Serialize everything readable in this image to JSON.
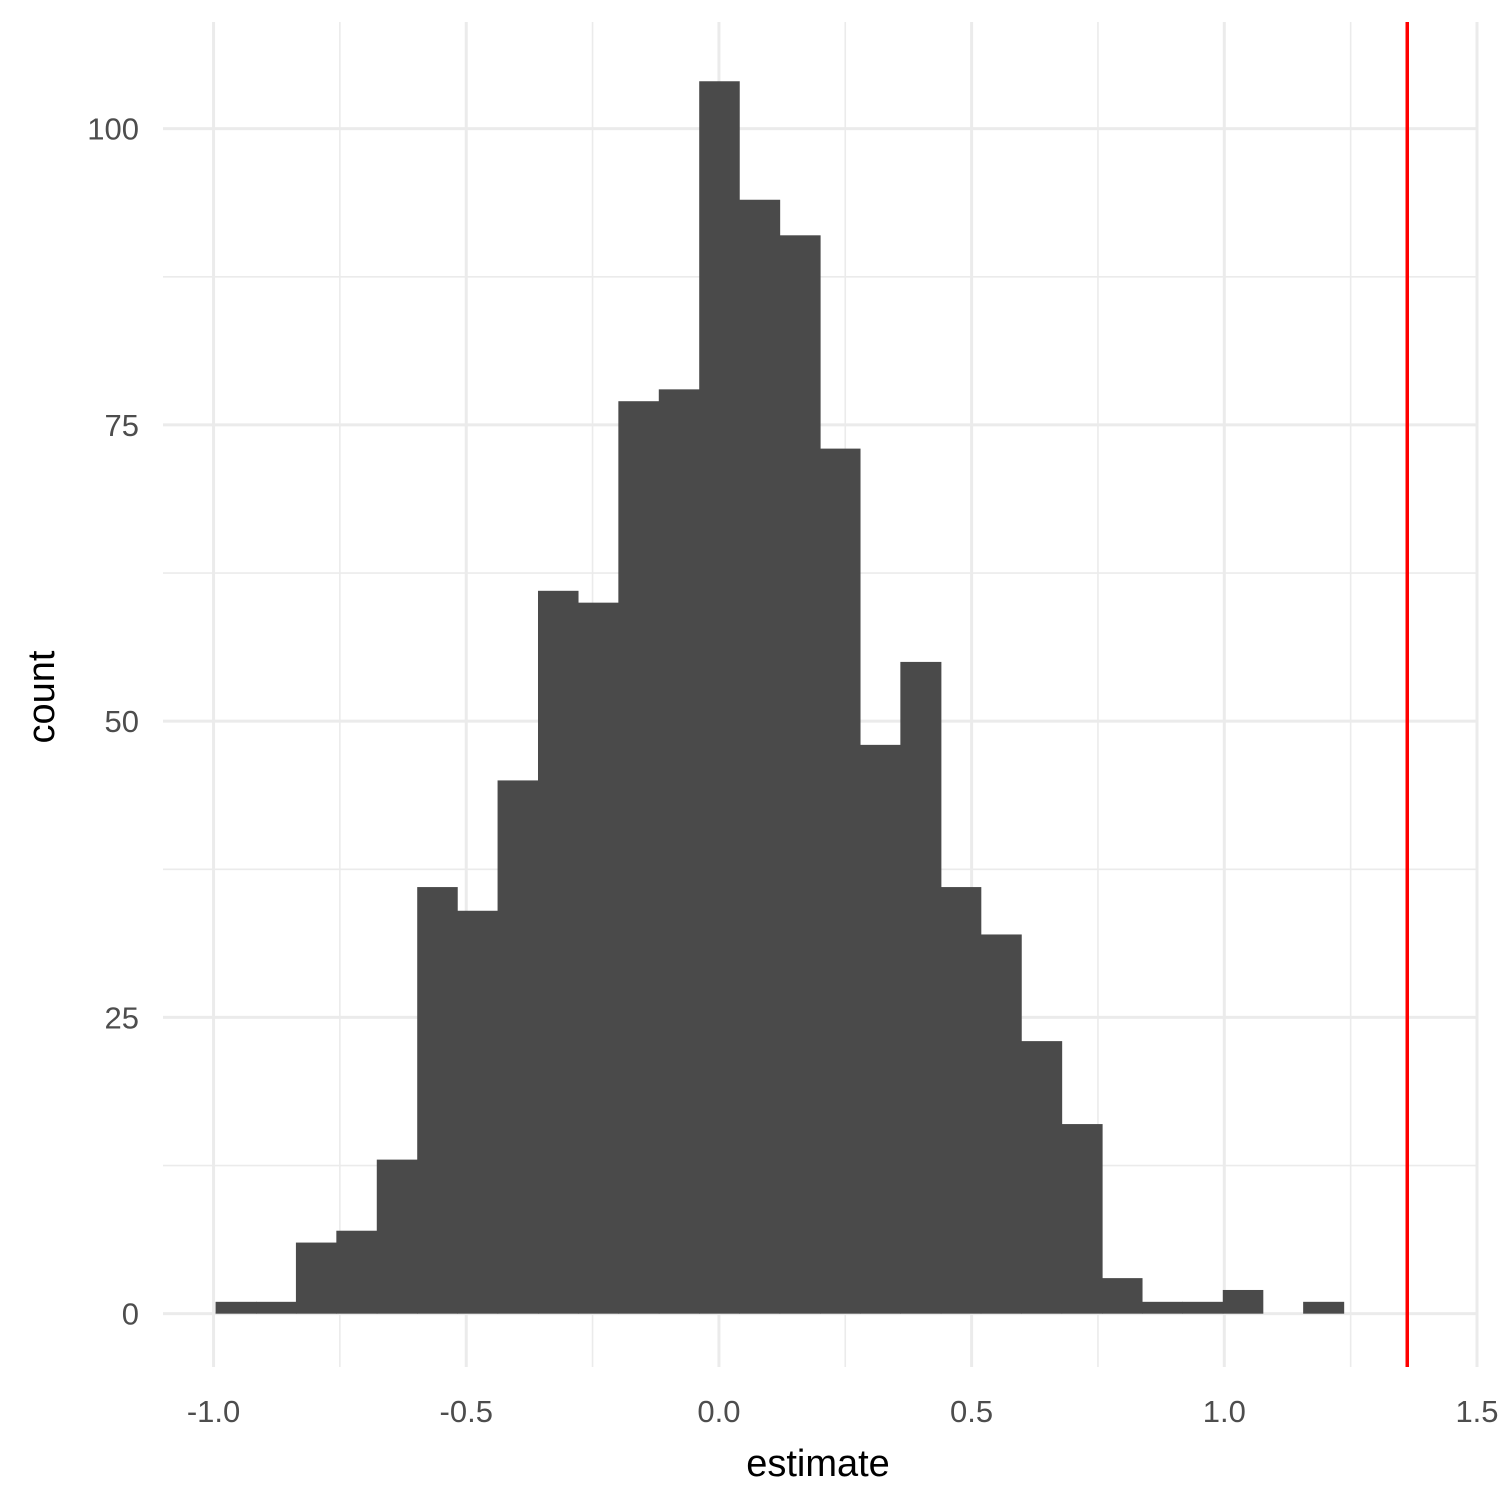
{
  "chart_data": {
    "type": "bar",
    "subtype": "histogram",
    "title": "",
    "xlabel": "estimate",
    "ylabel": "count",
    "xlim": [
      -1.1,
      1.5
    ],
    "ylim": [
      -4.5,
      109
    ],
    "x_ticks": [
      -1.0,
      -0.5,
      0.0,
      0.5,
      1.0,
      1.5
    ],
    "x_tick_labels": [
      "-1.0",
      "-0.5",
      "0.0",
      "0.5",
      "1.0",
      "1.5"
    ],
    "y_ticks": [
      0,
      25,
      50,
      75,
      100
    ],
    "y_tick_labels": [
      "0",
      "25",
      "50",
      "75",
      "100"
    ],
    "grid": true,
    "legend": "none",
    "bin_width": 0.0797,
    "bins": [
      {
        "start": -0.996,
        "end": -0.916,
        "count": 1
      },
      {
        "start": -0.916,
        "end": -0.837,
        "count": 1
      },
      {
        "start": -0.837,
        "end": -0.757,
        "count": 6
      },
      {
        "start": -0.757,
        "end": -0.677,
        "count": 7
      },
      {
        "start": -0.677,
        "end": -0.597,
        "count": 13
      },
      {
        "start": -0.597,
        "end": -0.518,
        "count": 36
      },
      {
        "start": -0.518,
        "end": -0.438,
        "count": 34
      },
      {
        "start": -0.438,
        "end": -0.358,
        "count": 45
      },
      {
        "start": -0.358,
        "end": -0.279,
        "count": 61
      },
      {
        "start": -0.279,
        "end": -0.199,
        "count": 60
      },
      {
        "start": -0.199,
        "end": -0.119,
        "count": 77
      },
      {
        "start": -0.119,
        "end": -0.039,
        "count": 78
      },
      {
        "start": -0.039,
        "end": 0.04,
        "count": 104
      },
      {
        "start": 0.04,
        "end": 0.12,
        "count": 94
      },
      {
        "start": 0.12,
        "end": 0.2,
        "count": 91
      },
      {
        "start": 0.2,
        "end": 0.279,
        "count": 73
      },
      {
        "start": 0.279,
        "end": 0.359,
        "count": 48
      },
      {
        "start": 0.359,
        "end": 0.439,
        "count": 55
      },
      {
        "start": 0.439,
        "end": 0.518,
        "count": 36
      },
      {
        "start": 0.518,
        "end": 0.598,
        "count": 32
      },
      {
        "start": 0.598,
        "end": 0.678,
        "count": 23
      },
      {
        "start": 0.678,
        "end": 0.758,
        "count": 16
      },
      {
        "start": 0.758,
        "end": 0.837,
        "count": 3
      },
      {
        "start": 0.837,
        "end": 0.917,
        "count": 1
      },
      {
        "start": 0.917,
        "end": 0.997,
        "count": 1
      },
      {
        "start": 0.997,
        "end": 1.076,
        "count": 2
      },
      {
        "start": 1.076,
        "end": 1.156,
        "count": 0
      },
      {
        "start": 1.156,
        "end": 1.236,
        "count": 1
      }
    ],
    "reference_line": {
      "orientation": "vertical",
      "x": 1.362
    },
    "colors": {
      "bar_fill": "#4a4a4a",
      "reference_line": "#ff0000",
      "grid": "#ebebeb",
      "tick_label": "#4d4d4d",
      "axis_title": "#000000"
    }
  }
}
